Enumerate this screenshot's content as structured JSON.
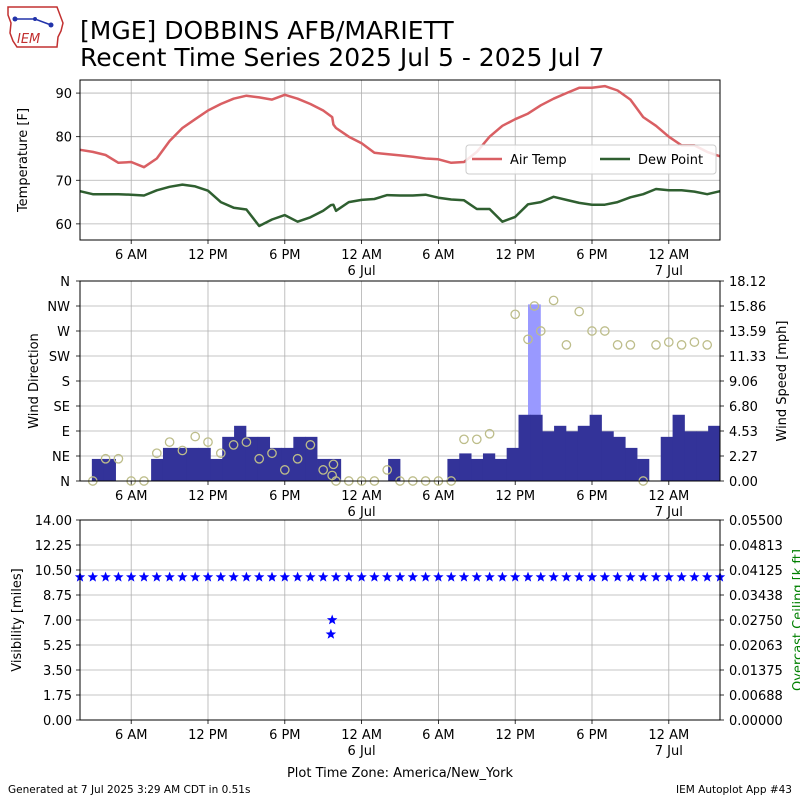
{
  "header": {
    "title_line1": "[MGE] DOBBINS AFB/MARIETT",
    "title_line2": "Recent Time Series 2025 Jul 5 - 2025 Jul 7",
    "logo_text": "IEM"
  },
  "footer": {
    "generated": "Generated at 7 Jul 2025 3:29 AM CDT in 0.51s",
    "app": "IEM Autoplot App #43"
  },
  "colors": {
    "air_temp": "#d95f63",
    "dew_point": "#2f5f30",
    "wind_speed": "#333399",
    "wind_gust": "#9999ff",
    "wind_dir": "#bdbd8a",
    "visibility": "#0000ff",
    "ceiling_label": "#008000",
    "grid": "#b0b0b0"
  },
  "chart_data": [
    {
      "type": "line",
      "panel": "temperature",
      "ylabel": "Temperature [F]",
      "ylim": [
        56.3,
        93.0
      ],
      "yticks": [
        60,
        70,
        80,
        90
      ],
      "xlim": [
        0,
        50
      ],
      "x_unit": "hours since 2025-07-05 02:00 (America/New_York)",
      "xticks": [
        4,
        10,
        16,
        22,
        28,
        34,
        40,
        46
      ],
      "xtick_labels": [
        "6 AM",
        "12 PM",
        "6 PM",
        "12 AM\n6 Jul",
        "6 AM",
        "12 PM",
        "6 PM",
        "12 AM\n7 Jul"
      ],
      "grid": true,
      "legend": "right",
      "series": [
        {
          "name": "Air Temp",
          "x": [
            0,
            1,
            2,
            3,
            4,
            5,
            6,
            7,
            8,
            9,
            10,
            11,
            12,
            13,
            14,
            15,
            16,
            17,
            18,
            19,
            19.7,
            19.8,
            20,
            21,
            22,
            23,
            24,
            25,
            26,
            27,
            28,
            29,
            30,
            31,
            32,
            33,
            34,
            35,
            36,
            37,
            38,
            39,
            40,
            41,
            42,
            43,
            44,
            45,
            46,
            47,
            48,
            49,
            50
          ],
          "y": [
            77,
            76.5,
            75.8,
            74,
            74.2,
            73,
            75,
            79,
            82,
            84,
            86,
            87.5,
            88.7,
            89.4,
            89,
            88.5,
            89.6,
            88.7,
            87.5,
            86,
            84.5,
            82.8,
            82,
            80,
            78.5,
            76.3,
            76,
            75.7,
            75.4,
            75,
            74.8,
            74,
            74.2,
            76.5,
            80,
            82.5,
            84,
            85.3,
            87.2,
            88.7,
            90,
            91.2,
            91.2,
            91.6,
            90.6,
            88.5,
            84.5,
            82.5,
            80,
            78,
            78,
            76.5,
            75.5
          ]
        },
        {
          "name": "Dew Point",
          "x": [
            0,
            1,
            2,
            3,
            4,
            5,
            6,
            7,
            8,
            9,
            10,
            11,
            12,
            13,
            14,
            15,
            16,
            17,
            18,
            19,
            19.6,
            19.8,
            20,
            21,
            22,
            23,
            24,
            25,
            26,
            27,
            28,
            29,
            30,
            31,
            32,
            33,
            34,
            35,
            36,
            37,
            38,
            39,
            40,
            41,
            42,
            43,
            44,
            45,
            46,
            47,
            48,
            49,
            50
          ],
          "y": [
            67.5,
            66.8,
            66.8,
            66.8,
            66.7,
            66.5,
            67.7,
            68.5,
            69,
            68.6,
            67.6,
            65,
            63.7,
            63.3,
            59.5,
            61,
            62,
            60.5,
            61.5,
            63,
            64.3,
            64.4,
            63,
            65,
            65.5,
            65.7,
            66.6,
            66.5,
            66.5,
            66.7,
            66,
            65.6,
            65.4,
            63.4,
            63.4,
            60.5,
            61.6,
            64.5,
            65,
            66.2,
            65.5,
            64.8,
            64.4,
            64.4,
            65,
            66.1,
            66.8,
            68,
            67.7,
            67.7,
            67.4,
            66.8,
            67.5
          ]
        }
      ]
    },
    {
      "type": "bar",
      "panel": "wind",
      "ylabel": "Wind Direction",
      "y2label": "Wind Speed [mph]",
      "ylim": [
        0,
        360
      ],
      "yticks": [
        0,
        45,
        90,
        135,
        180,
        225,
        270,
        315,
        360
      ],
      "ytick_labels": [
        "N",
        "NE",
        "E",
        "SE",
        "S",
        "SW",
        "W",
        "NW",
        "N"
      ],
      "y2lim": [
        0,
        18.12
      ],
      "y2ticks": [
        "0.00",
        "2.27",
        "4.53",
        "6.80",
        "9.06",
        "11.33",
        "13.59",
        "15.86",
        "18.12"
      ],
      "xlim": [
        0,
        50
      ],
      "xticks": [
        4,
        10,
        16,
        22,
        28,
        34,
        40,
        46
      ],
      "xtick_labels": [
        "6 AM",
        "12 PM",
        "6 PM",
        "12 AM\n6 Jul",
        "6 AM",
        "12 PM",
        "6 PM",
        "12 AM\n7 Jul"
      ],
      "grid": true,
      "speed_mph": [
        0,
        2,
        2,
        0,
        0,
        0,
        2,
        3,
        3,
        3,
        3,
        2,
        4,
        5,
        4,
        4,
        3,
        3,
        4,
        4,
        2,
        2,
        0,
        0,
        0,
        0,
        2,
        0,
        0,
        0,
        0,
        2,
        2.5,
        2,
        2.5,
        2,
        3,
        6,
        6,
        4.5,
        5,
        4.5,
        5,
        6,
        4.5,
        4,
        3,
        2,
        0,
        4,
        6,
        4.5,
        4.5,
        5
      ],
      "gust_mph": [
        {
          "x": 35.5,
          "value": 16
        }
      ],
      "direction_deg": [
        [
          1,
          0
        ],
        [
          2,
          40
        ],
        [
          3,
          40
        ],
        [
          4,
          0
        ],
        [
          5,
          0
        ],
        [
          6,
          50
        ],
        [
          7,
          70
        ],
        [
          8,
          55
        ],
        [
          9,
          80
        ],
        [
          10,
          70
        ],
        [
          11,
          50
        ],
        [
          12,
          65
        ],
        [
          13,
          70
        ],
        [
          14,
          40
        ],
        [
          15,
          50
        ],
        [
          16,
          20
        ],
        [
          17,
          40
        ],
        [
          18,
          65
        ],
        [
          19,
          20
        ],
        [
          19.7,
          10
        ],
        [
          19.8,
          30
        ],
        [
          20,
          0
        ],
        [
          21,
          0
        ],
        [
          22,
          0
        ],
        [
          23,
          0
        ],
        [
          24,
          20
        ],
        [
          25,
          0
        ],
        [
          26,
          0
        ],
        [
          27,
          0
        ],
        [
          28,
          0
        ],
        [
          29,
          0
        ],
        [
          30,
          75
        ],
        [
          31,
          75
        ],
        [
          32,
          85
        ],
        [
          34,
          300
        ],
        [
          35,
          255
        ],
        [
          35.5,
          315
        ],
        [
          36,
          270
        ],
        [
          37,
          325
        ],
        [
          38,
          245
        ],
        [
          39,
          305
        ],
        [
          40,
          270
        ],
        [
          41,
          270
        ],
        [
          42,
          245
        ],
        [
          43,
          245
        ],
        [
          44,
          0
        ],
        [
          45,
          245
        ],
        [
          46,
          250
        ],
        [
          47,
          245
        ],
        [
          48,
          250
        ],
        [
          49,
          245
        ]
      ]
    },
    {
      "type": "scatter",
      "panel": "visibility",
      "ylabel": "Visibility [miles]",
      "y2label": "Overcast Ceiling [k ft]",
      "ylim": [
        0,
        14
      ],
      "yticks": [
        "0.00",
        "1.75",
        "3.50",
        "5.25",
        "7.00",
        "8.75",
        "10.50",
        "12.25",
        "14.00"
      ],
      "y2ticks": [
        "0.00000",
        "0.00688",
        "0.01375",
        "0.02063",
        "0.02750",
        "0.03438",
        "0.04125",
        "0.04813",
        "0.05500"
      ],
      "xlim": [
        0,
        50
      ],
      "xticks": [
        4,
        10,
        16,
        22,
        28,
        34,
        40,
        46
      ],
      "xtick_labels": [
        "6 AM",
        "12 PM",
        "6 PM",
        "12 AM\n6 Jul",
        "6 AM",
        "12 PM",
        "6 PM",
        "12 AM\n7 Jul"
      ],
      "xlabel": "Plot Time Zone: America/New_York",
      "grid": true,
      "visibility_miles": [
        [
          0,
          10
        ],
        [
          1,
          10
        ],
        [
          2,
          10
        ],
        [
          3,
          10
        ],
        [
          4,
          10
        ],
        [
          5,
          10
        ],
        [
          6,
          10
        ],
        [
          7,
          10
        ],
        [
          8,
          10
        ],
        [
          9,
          10
        ],
        [
          10,
          10
        ],
        [
          11,
          10
        ],
        [
          12,
          10
        ],
        [
          13,
          10
        ],
        [
          14,
          10
        ],
        [
          15,
          10
        ],
        [
          16,
          10
        ],
        [
          17,
          10
        ],
        [
          18,
          10
        ],
        [
          19,
          10
        ],
        [
          19.7,
          7
        ],
        [
          19.6,
          6
        ],
        [
          20,
          10
        ],
        [
          21,
          10
        ],
        [
          22,
          10
        ],
        [
          23,
          10
        ],
        [
          24,
          10
        ],
        [
          25,
          10
        ],
        [
          26,
          10
        ],
        [
          27,
          10
        ],
        [
          28,
          10
        ],
        [
          29,
          10
        ],
        [
          30,
          10
        ],
        [
          31,
          10
        ],
        [
          32,
          10
        ],
        [
          33,
          10
        ],
        [
          34,
          10
        ],
        [
          35,
          10
        ],
        [
          36,
          10
        ],
        [
          37,
          10
        ],
        [
          38,
          10
        ],
        [
          39,
          10
        ],
        [
          40,
          10
        ],
        [
          41,
          10
        ],
        [
          42,
          10
        ],
        [
          43,
          10
        ],
        [
          44,
          10
        ],
        [
          45,
          10
        ],
        [
          46,
          10
        ],
        [
          47,
          10
        ],
        [
          48,
          10
        ],
        [
          49,
          10
        ],
        [
          50,
          10
        ]
      ]
    }
  ]
}
